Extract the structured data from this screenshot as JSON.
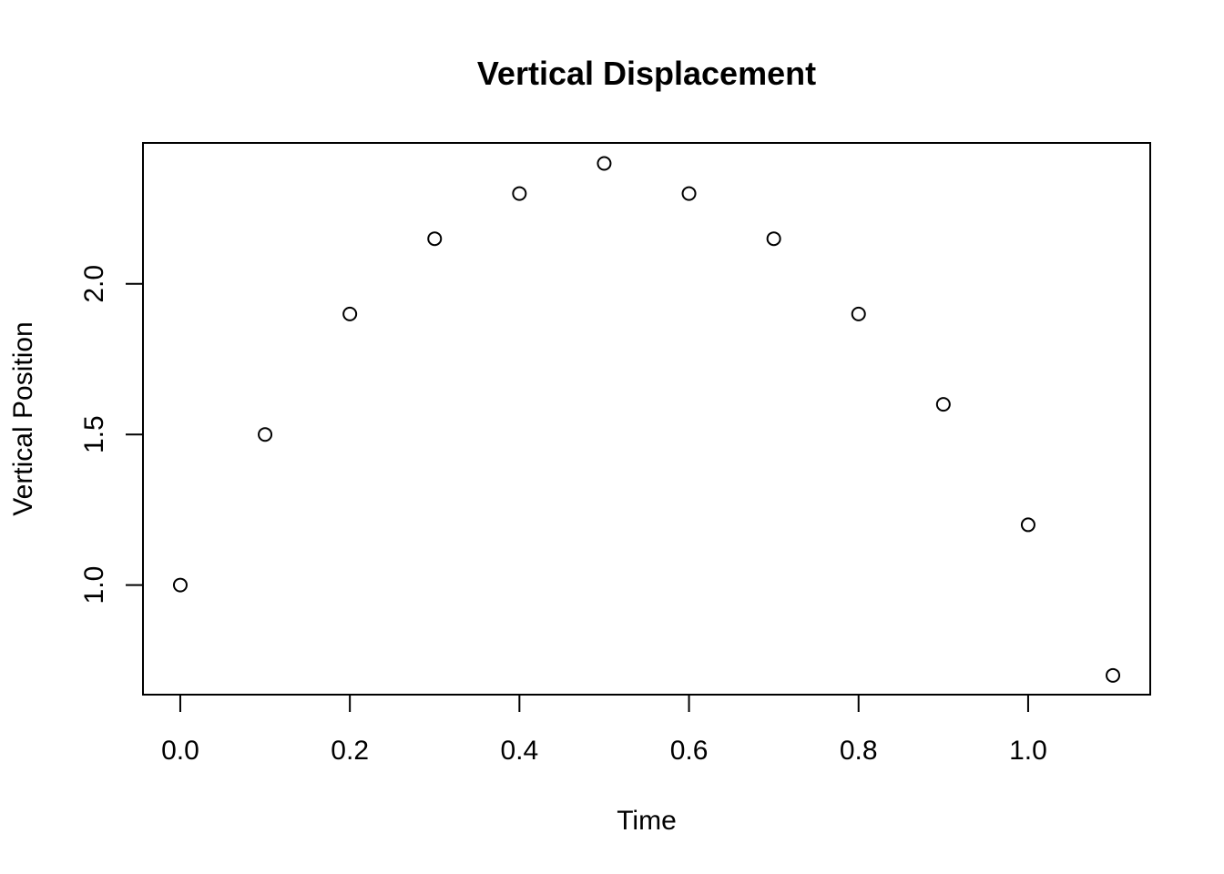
{
  "chart_data": {
    "type": "scatter",
    "title": "Vertical Displacement",
    "xlabel": "Time",
    "ylabel": "Vertical Position",
    "x": [
      0.0,
      0.1,
      0.2,
      0.3,
      0.4,
      0.5,
      0.6,
      0.7,
      0.8,
      0.9,
      1.0,
      1.1
    ],
    "y": [
      1.0,
      1.5,
      1.9,
      2.15,
      2.3,
      2.4,
      2.3,
      2.15,
      1.9,
      1.6,
      1.2,
      0.7
    ],
    "xlim": [
      -0.044,
      1.144
    ],
    "ylim": [
      0.636,
      2.468
    ],
    "x_ticks": [
      "0.0",
      "0.2",
      "0.4",
      "0.6",
      "0.8",
      "1.0"
    ],
    "y_ticks": [
      "1.0",
      "1.5",
      "2.0"
    ],
    "grid": false,
    "legend": false,
    "marker": "open-circle",
    "point_color": "#000000"
  }
}
